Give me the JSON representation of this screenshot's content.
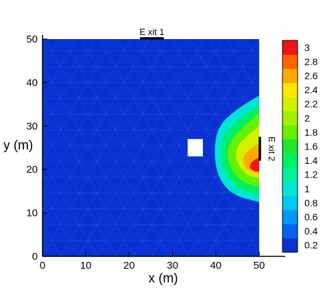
{
  "chart_data": {
    "type": "heatmap",
    "xlabel": "x (m)",
    "ylabel": "y (m)",
    "xlim": [
      0,
      50
    ],
    "ylim": [
      0,
      50
    ],
    "x_ticks": [
      "0",
      "10",
      "20",
      "30",
      "40",
      "50"
    ],
    "y_ticks": [
      "0",
      "10",
      "20",
      "30",
      "40",
      "50"
    ],
    "colorbar": {
      "ticks": [
        "0.2",
        "0.4",
        "0.6",
        "0.8",
        "1",
        "1.2",
        "1.4",
        "1.6",
        "1.8",
        "2",
        "2.2",
        "2.4",
        "2.6",
        "2.8",
        "3"
      ],
      "levels": [
        0.2,
        0.4,
        0.6,
        0.8,
        1.0,
        1.2,
        1.4,
        1.6,
        1.8,
        2.0,
        2.2,
        2.4,
        2.6,
        2.8,
        3.0
      ],
      "colors": [
        "#0a32d2",
        "#0064f0",
        "#0096f5",
        "#00c8f0",
        "#00e6d2",
        "#00f0a0",
        "#00f064",
        "#1ee632",
        "#64f000",
        "#a0f000",
        "#d2f000",
        "#ffe600",
        "#ffaa00",
        "#ff6400",
        "#f01414"
      ]
    },
    "background_level": 0.2,
    "density_peak": {
      "x": 48,
      "y": 20,
      "max": 3.0
    },
    "contours": [
      {
        "level": 1.0,
        "points": [
          [
            50,
            37
          ],
          [
            45,
            34
          ],
          [
            40.5,
            30
          ],
          [
            39.5,
            24
          ],
          [
            40.5,
            18
          ],
          [
            44,
            14
          ],
          [
            50,
            12.5
          ]
        ]
      },
      {
        "level": 1.4,
        "points": [
          [
            50,
            35
          ],
          [
            46,
            32
          ],
          [
            42,
            28.5
          ],
          [
            41,
            24
          ],
          [
            42,
            19
          ],
          [
            45,
            15.5
          ],
          [
            50,
            14
          ]
        ]
      },
      {
        "level": 1.8,
        "points": [
          [
            50,
            33
          ],
          [
            47,
            30.5
          ],
          [
            43.5,
            27
          ],
          [
            42.5,
            23.5
          ],
          [
            43.5,
            20
          ],
          [
            46,
            17
          ],
          [
            50,
            16
          ]
        ]
      },
      {
        "level": 2.2,
        "points": [
          [
            50,
            30
          ],
          [
            47.5,
            28
          ],
          [
            45,
            25.5
          ],
          [
            44.5,
            23
          ],
          [
            45.5,
            20.5
          ],
          [
            47.5,
            18.5
          ],
          [
            50,
            18
          ]
        ]
      },
      {
        "level": 2.6,
        "points": [
          [
            50,
            26
          ],
          [
            47.5,
            24.5
          ],
          [
            46,
            22.5
          ],
          [
            46.8,
            20.3
          ],
          [
            48.5,
            19.3
          ],
          [
            50,
            19
          ]
        ]
      },
      {
        "level": 3.0,
        "points": [
          [
            50,
            22.8
          ],
          [
            48.5,
            22
          ],
          [
            47.6,
            20.6
          ],
          [
            48.7,
            19.6
          ],
          [
            50,
            19.5
          ]
        ]
      }
    ],
    "obstacle": {
      "x": [
        33.5,
        37
      ],
      "y": [
        23,
        27
      ]
    },
    "exits": [
      {
        "label": "E xit 1",
        "side": "top",
        "x": [
          22.5,
          28
        ]
      },
      {
        "label": "E xit 2",
        "side": "right",
        "y": [
          22,
          27.5
        ]
      }
    ],
    "colors": {
      "background": "#0a32d2",
      "mesh": "#3c64e6",
      "obstacle": "#ffffff",
      "exit": "#000000"
    }
  }
}
